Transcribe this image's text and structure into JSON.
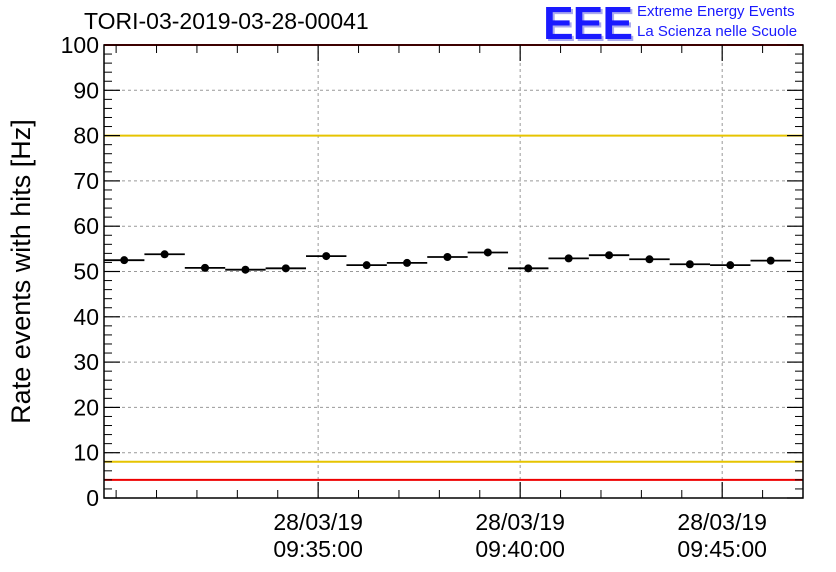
{
  "title": "TORI-03-2019-03-28-00041",
  "logo": {
    "mark": "EEE",
    "line1": "Extreme Energy Events",
    "line2": "La Scienza nelle Scuole",
    "color": "#1a1aff"
  },
  "chart_data": {
    "type": "scatter",
    "title": "TORI-03-2019-03-28-00041",
    "xlabel": "",
    "ylabel": "Rate events with hits [Hz]",
    "ylim": [
      0,
      100
    ],
    "yticks": [
      0,
      10,
      20,
      30,
      40,
      50,
      60,
      70,
      80,
      90,
      100
    ],
    "grid": true,
    "x_range_minutes": [
      -2.3,
      15.0
    ],
    "x_reference_minute": 0,
    "xticks": [
      {
        "minute": 3,
        "date": "28/03/19",
        "time": "09:35:00"
      },
      {
        "minute": 8,
        "date": "28/03/19",
        "time": "09:40:00"
      },
      {
        "minute": 13,
        "date": "28/03/19",
        "time": "09:45:00"
      }
    ],
    "bin_width_minutes": 1,
    "series": [
      {
        "name": "rate",
        "color": "#000000",
        "x_minutes": [
          -1.8,
          -0.8,
          0.2,
          1.2,
          2.2,
          3.2,
          4.2,
          5.2,
          6.2,
          7.2,
          8.2,
          9.2,
          10.2,
          11.2,
          12.2,
          13.2,
          14.2
        ],
        "values": [
          52.5,
          53.8,
          50.8,
          50.4,
          50.7,
          53.4,
          51.4,
          51.9,
          53.2,
          54.2,
          50.7,
          52.9,
          53.6,
          52.7,
          51.6,
          51.4,
          52.4
        ]
      }
    ],
    "reference_lines": [
      {
        "name": "upper-red",
        "value": 100,
        "color": "#ee0000"
      },
      {
        "name": "upper-yellow",
        "value": 80,
        "color": "#e6c400"
      },
      {
        "name": "lower-yellow",
        "value": 8,
        "color": "#e6c400"
      },
      {
        "name": "lower-red",
        "value": 4,
        "color": "#ee0000"
      }
    ]
  }
}
